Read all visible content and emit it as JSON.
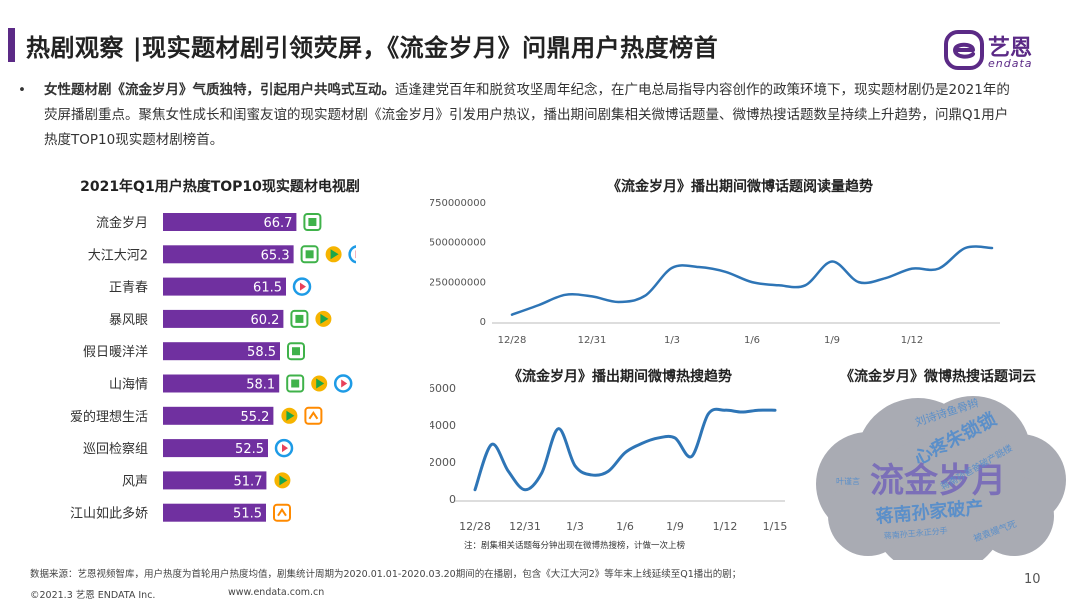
{
  "header": {
    "title": "热剧观察 |现实题材剧引领荧屏，《流金岁月》问鼎用户热度榜首",
    "logo_cn": "艺恩",
    "logo_en": "endata"
  },
  "intro": {
    "bullet": "•",
    "lead": "女性题材剧《流金岁月》气质独特，引起用户共鸣式互动。",
    "body": "适逢建党百年和脱贫攻坚周年纪念，在广电总局指导内容创作的政策环境下，现实题材剧仍是2021年的荧屏播剧重点。聚焦女性成长和闺蜜友谊的现实题材剧《流金岁月》引发用户热议，播出期间剧集相关微博话题量、微博热搜话题数呈持续上升趋势，问鼎Q1用户热度TOP10现实题材剧榜首。"
  },
  "colors": {
    "bar": "#7030a0",
    "line": "#2e75b6",
    "iqiyi": "#3fb24a",
    "tencent": "#1e9be6",
    "youku": "#1e9be6",
    "mgtv": "#ff8a00",
    "cloud": "#a9abb3"
  },
  "chart_data": [
    {
      "type": "bar",
      "title": "2021年Q1用户热度TOP10现实题材电视剧",
      "categories": [
        "流金岁月",
        "大江大河2",
        "正青春",
        "暴风眼",
        "假日暖洋洋",
        "山海情",
        "爱的理想生活",
        "巡回检察组",
        "风声",
        "江山如此多娇"
      ],
      "values": [
        66.7,
        65.3,
        61.5,
        60.2,
        58.5,
        58.1,
        55.2,
        52.5,
        51.7,
        51.5
      ],
      "platform_icons": [
        [
          "iqiyi"
        ],
        [
          "iqiyi",
          "tencent",
          "youku"
        ],
        [
          "youku"
        ],
        [
          "iqiyi",
          "tencent"
        ],
        [
          "iqiyi"
        ],
        [
          "iqiyi",
          "tencent",
          "youku"
        ],
        [
          "tencent",
          "mgtv"
        ],
        [
          "youku"
        ],
        [
          "tencent"
        ],
        [
          "mgtv"
        ]
      ]
    },
    {
      "type": "line",
      "title": "《流金岁月》播出期间微博话题阅读量趋势",
      "x_ticks": [
        "12/28",
        "12/31",
        "1/3",
        "1/6",
        "1/9",
        "1/12"
      ],
      "y_ticks": [
        "0",
        "250000000",
        "500000000",
        "750000000"
      ],
      "ylim": [
        0,
        750000000
      ],
      "x": [
        12.28,
        12.29,
        12.3,
        12.31,
        1.01,
        1.02,
        1.03,
        1.04,
        1.05,
        1.06,
        1.07,
        1.08,
        1.09,
        1.1,
        1.11,
        1.12,
        1.13,
        1.14,
        1.15
      ],
      "values": [
        40000000,
        100000000,
        165000000,
        155000000,
        120000000,
        160000000,
        335000000,
        340000000,
        310000000,
        245000000,
        225000000,
        225000000,
        375000000,
        245000000,
        270000000,
        330000000,
        330000000,
        460000000,
        460000000
      ]
    },
    {
      "type": "line",
      "title": "《流金岁月》播出期间微博热搜趋势",
      "x_ticks": [
        "12/28",
        "12/31",
        "1/3",
        "1/6",
        "1/9",
        "1/12",
        "1/15"
      ],
      "y_ticks": [
        "0",
        "2000",
        "4000",
        "6000"
      ],
      "ylim": [
        0,
        6000
      ],
      "x": [
        12.28,
        12.29,
        12.3,
        12.31,
        1.01,
        1.02,
        1.03,
        1.04,
        1.05,
        1.06,
        1.07,
        1.08,
        1.09,
        1.1,
        1.11,
        1.12,
        1.13,
        1.14,
        1.15
      ],
      "values": [
        500,
        2950,
        1500,
        500,
        1400,
        3800,
        1800,
        1300,
        1500,
        2500,
        3000,
        3300,
        3300,
        2300,
        4600,
        4800,
        4700,
        4800,
        4800
      ],
      "note": "注：剧集相关话题每分钟出现在微博热搜榜，计做一次上榜"
    }
  ],
  "wordcloud": {
    "title": "《流金岁月》微博热搜话题词云",
    "words": [
      {
        "text": "流金岁月",
        "size": 34,
        "color": "#7b6fb8"
      },
      {
        "text": "蒋南孙家破产",
        "size": 18,
        "color": "#5b8fc9"
      },
      {
        "text": "心疼朱锁锁",
        "size": 18,
        "color": "#5b8fc9"
      },
      {
        "text": "刘诗诗鱼骨辫",
        "size": 11,
        "color": "#5b8fc9"
      },
      {
        "text": "蒋南孙爸爸破产跳楼",
        "size": 9,
        "color": "#5b8fc9"
      },
      {
        "text": "蒋南孙王永正分手",
        "size": 8,
        "color": "#5b8fc9"
      },
      {
        "text": "被袁嫚气死",
        "size": 9,
        "color": "#5b8fc9"
      },
      {
        "text": "叶谨言",
        "size": 8,
        "color": "#5b8fc9"
      }
    ]
  },
  "footer": {
    "source": "数据来源：艺恩视频智库，用户热度为首轮用户热度均值，剧集统计周期为2020.01.01-2020.03.20期间的在播剧，包含《大江大河2》等年末上线延续至Q1播出的剧；",
    "copyright": "©2021.3 艺恩 ENDATA Inc.",
    "url": "www.endata.com.cn",
    "page": "10"
  }
}
